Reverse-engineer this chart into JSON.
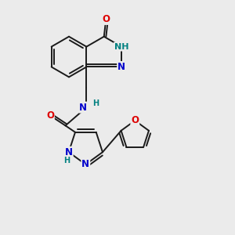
{
  "bg_color": "#ebebeb",
  "bond_color": "#1a1a1a",
  "bond_width": 1.4,
  "atom_colors": {
    "C": "#1a1a1a",
    "N": "#0000cc",
    "O": "#dd0000",
    "H": "#008080"
  },
  "font_size": 8.5,
  "xlim": [
    -0.3,
    4.8
  ],
  "ylim": [
    -0.5,
    5.2
  ],
  "figsize": [
    3.0,
    3.0
  ],
  "dpi": 100
}
